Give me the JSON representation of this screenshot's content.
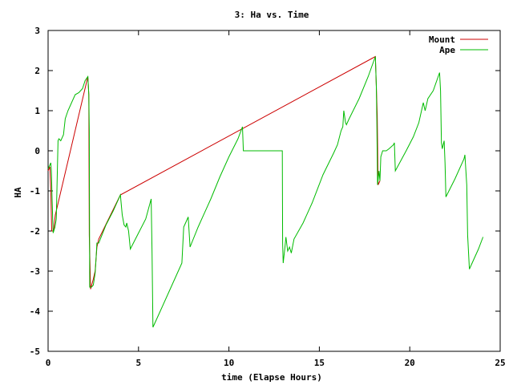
{
  "chart_data": {
    "type": "line",
    "title": "3: Ha vs. Time",
    "xlabel": "time (Elapse Hours)",
    "ylabel": "HA",
    "xlim": [
      0,
      25
    ],
    "ylim": [
      -5,
      3
    ],
    "xticks": [
      0,
      5,
      10,
      15,
      20,
      25
    ],
    "yticks": [
      -5,
      -4,
      -3,
      -2,
      -1,
      0,
      1,
      2,
      3
    ],
    "grid": false,
    "legend_position": "top-right",
    "series": [
      {
        "name": "Mount",
        "color": "#cc0000",
        "points": [
          [
            0.0,
            -0.5
          ],
          [
            0.1,
            -0.4
          ],
          [
            0.15,
            -1.0
          ],
          [
            0.2,
            -2.0
          ],
          [
            0.3,
            -2.0
          ],
          [
            0.4,
            -1.6
          ],
          [
            2.2,
            1.85
          ],
          [
            2.25,
            1.4
          ],
          [
            2.28,
            -2.1
          ],
          [
            2.35,
            -3.45
          ],
          [
            2.5,
            -3.2
          ],
          [
            2.6,
            -3.0
          ],
          [
            2.7,
            -2.4
          ],
          [
            2.8,
            -2.2
          ],
          [
            4.0,
            -1.1
          ],
          [
            18.1,
            2.35
          ],
          [
            18.15,
            1.6
          ],
          [
            18.2,
            0.9
          ],
          [
            18.25,
            -0.85
          ],
          [
            18.35,
            -0.75
          ]
        ]
      },
      {
        "name": "Ape",
        "color": "#00bb00",
        "points": [
          [
            0.0,
            -0.45
          ],
          [
            0.1,
            -0.35
          ],
          [
            0.15,
            -0.3
          ],
          [
            0.18,
            -0.5
          ],
          [
            0.22,
            -1.2
          ],
          [
            0.28,
            -2.05
          ],
          [
            0.38,
            -1.9
          ],
          [
            0.45,
            -1.7
          ],
          [
            0.55,
            0.25
          ],
          [
            0.6,
            0.3
          ],
          [
            0.7,
            0.25
          ],
          [
            0.85,
            0.4
          ],
          [
            0.95,
            0.8
          ],
          [
            1.1,
            1.0
          ],
          [
            1.3,
            1.2
          ],
          [
            1.5,
            1.4
          ],
          [
            1.7,
            1.45
          ],
          [
            1.9,
            1.55
          ],
          [
            2.05,
            1.75
          ],
          [
            2.2,
            1.85
          ],
          [
            2.25,
            1.4
          ],
          [
            2.28,
            0.5
          ],
          [
            2.3,
            -3.4
          ],
          [
            2.4,
            -3.4
          ],
          [
            2.5,
            -3.35
          ],
          [
            2.6,
            -3.05
          ],
          [
            2.65,
            -2.7
          ],
          [
            2.7,
            -2.3
          ],
          [
            2.8,
            -2.3
          ],
          [
            3.2,
            -1.85
          ],
          [
            3.6,
            -1.5
          ],
          [
            4.0,
            -1.1
          ],
          [
            4.1,
            -1.6
          ],
          [
            4.2,
            -1.85
          ],
          [
            4.3,
            -1.9
          ],
          [
            4.35,
            -1.8
          ],
          [
            4.45,
            -2.0
          ],
          [
            4.55,
            -2.45
          ],
          [
            5.0,
            -2.05
          ],
          [
            5.4,
            -1.7
          ],
          [
            5.7,
            -1.2
          ],
          [
            5.75,
            -2.55
          ],
          [
            5.8,
            -4.4
          ],
          [
            6.2,
            -4.0
          ],
          [
            6.8,
            -3.4
          ],
          [
            7.4,
            -2.8
          ],
          [
            7.5,
            -1.9
          ],
          [
            7.6,
            -1.8
          ],
          [
            7.75,
            -1.65
          ],
          [
            7.85,
            -2.4
          ],
          [
            8.3,
            -1.9
          ],
          [
            9.0,
            -1.2
          ],
          [
            9.5,
            -0.65
          ],
          [
            10.0,
            -0.15
          ],
          [
            10.5,
            0.3
          ],
          [
            10.75,
            0.6
          ],
          [
            10.8,
            0.0
          ],
          [
            11.0,
            0.0
          ],
          [
            12.0,
            0.0
          ],
          [
            12.95,
            0.0
          ],
          [
            12.97,
            -2.3
          ],
          [
            13.0,
            -2.8
          ],
          [
            13.1,
            -2.4
          ],
          [
            13.15,
            -2.15
          ],
          [
            13.25,
            -2.5
          ],
          [
            13.35,
            -2.4
          ],
          [
            13.45,
            -2.55
          ],
          [
            13.6,
            -2.2
          ],
          [
            14.1,
            -1.8
          ],
          [
            14.6,
            -1.3
          ],
          [
            15.2,
            -0.6
          ],
          [
            15.8,
            -0.05
          ],
          [
            16.0,
            0.15
          ],
          [
            16.2,
            0.5
          ],
          [
            16.3,
            0.6
          ],
          [
            16.35,
            1.0
          ],
          [
            16.45,
            0.7
          ],
          [
            16.5,
            0.65
          ],
          [
            16.65,
            0.8
          ],
          [
            17.2,
            1.3
          ],
          [
            17.7,
            1.85
          ],
          [
            18.1,
            2.35
          ],
          [
            18.15,
            1.6
          ],
          [
            18.18,
            0.8
          ],
          [
            18.22,
            -0.85
          ],
          [
            18.3,
            -0.5
          ],
          [
            18.35,
            -0.75
          ],
          [
            18.4,
            -0.15
          ],
          [
            18.5,
            0.0
          ],
          [
            18.7,
            0.0
          ],
          [
            18.85,
            0.05
          ],
          [
            19.1,
            0.15
          ],
          [
            19.15,
            0.2
          ],
          [
            19.2,
            -0.5
          ],
          [
            19.8,
            0.0
          ],
          [
            20.2,
            0.35
          ],
          [
            20.5,
            0.7
          ],
          [
            20.75,
            1.2
          ],
          [
            20.85,
            1.0
          ],
          [
            21.0,
            1.3
          ],
          [
            21.3,
            1.5
          ],
          [
            21.65,
            1.95
          ],
          [
            21.7,
            1.5
          ],
          [
            21.75,
            0.2
          ],
          [
            21.8,
            0.05
          ],
          [
            21.85,
            0.15
          ],
          [
            21.9,
            0.25
          ],
          [
            21.92,
            0.05
          ],
          [
            21.95,
            -0.3
          ],
          [
            22.0,
            -1.15
          ],
          [
            22.5,
            -0.7
          ],
          [
            23.0,
            -0.2
          ],
          [
            23.05,
            -0.1
          ],
          [
            23.15,
            -0.85
          ],
          [
            23.2,
            -2.1
          ],
          [
            23.3,
            -2.95
          ],
          [
            23.8,
            -2.45
          ],
          [
            24.05,
            -2.15
          ]
        ]
      }
    ]
  }
}
